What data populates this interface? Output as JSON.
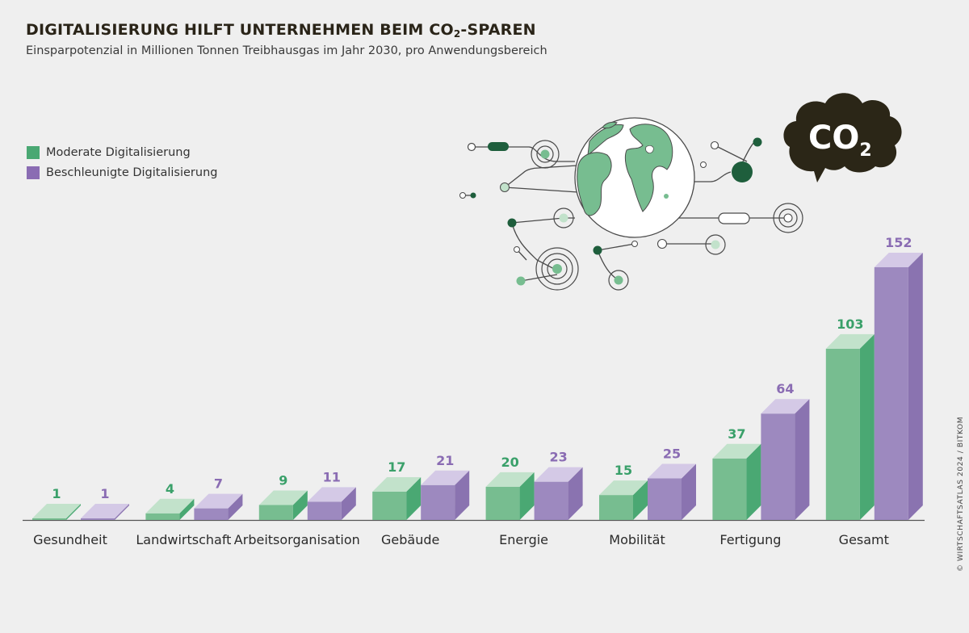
{
  "title_main": "DIGITALISIERUNG HILFT UNTERNEHMEN BEIM CO",
  "title_sub": "2",
  "title_end": "-SPAREN",
  "subtitle": "Einsparpotenzial in Millionen Tonnen Treibhausgas im Jahr 2030, pro Anwendungsbereich",
  "credit": "© WIRTSCHAFTSATLAS 2024 / BITKOM",
  "co2_label": {
    "main": "CO",
    "sub": "2"
  },
  "colors": {
    "green_front": "#77bd90",
    "green_side": "#4aa873",
    "green_top": "#c2e2cb",
    "green_label": "#3aa06a",
    "purple_front": "#9d89bf",
    "purple_side": "#8a73b0",
    "purple_top": "#d4c9e6",
    "purple_label": "#8a6cb3",
    "dark_green": "#1e5e3c",
    "cloud": "#2b2617"
  },
  "chart_data": {
    "type": "bar",
    "categories": [
      "Gesundheit",
      "Landwirtschaft",
      "Arbeitsorganisation",
      "Gebäude",
      "Energie",
      "Mobilität",
      "Fertigung",
      "Gesamt"
    ],
    "series": [
      {
        "name": "Moderate Digitalisierung",
        "values": [
          1,
          4,
          9,
          17,
          20,
          15,
          37,
          103
        ]
      },
      {
        "name": "Beschleunigte Digitalisierung",
        "values": [
          1,
          7,
          11,
          21,
          23,
          25,
          64,
          152
        ]
      }
    ],
    "title": "DIGITALISIERUNG HILFT UNTERNEHMEN BEIM CO2-SPAREN",
    "ylim": [
      0,
      152
    ],
    "legend": "top-left"
  }
}
